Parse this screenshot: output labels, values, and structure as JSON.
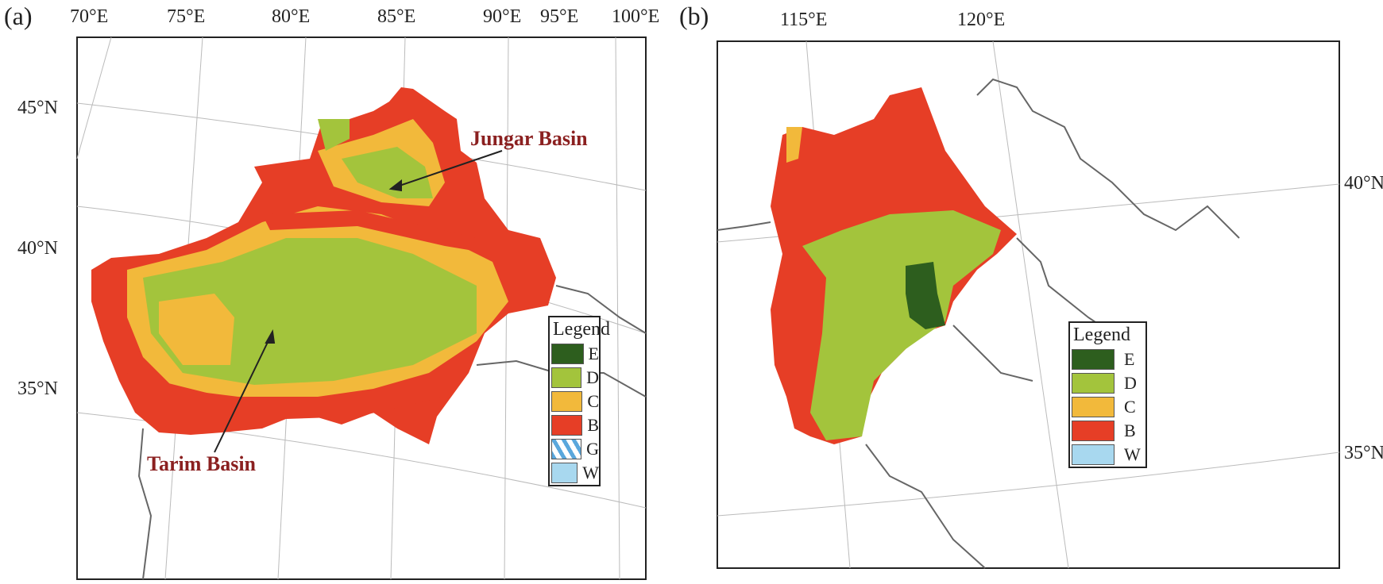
{
  "panels": [
    {
      "label": "(a)",
      "top_ticks": [
        "70°E",
        "75°E",
        "80°E",
        "85°E",
        "90°E",
        "95°E",
        "100°E"
      ],
      "left_ticks": [
        "45°N",
        "40°N",
        "35°N"
      ],
      "annotations": [
        "Jungar Basin",
        "Tarim Basin"
      ],
      "legend": {
        "title": "Legend",
        "items": [
          {
            "key": "E",
            "color": "#2d5e1e"
          },
          {
            "key": "D",
            "color": "#a3c43c"
          },
          {
            "key": "C",
            "color": "#f2b93b"
          },
          {
            "key": "B",
            "color": "#e63e26"
          },
          {
            "key": "G",
            "color": "#5aa7dc",
            "pattern": "glacier"
          },
          {
            "key": "W",
            "color": "#a8d8ef"
          }
        ]
      }
    },
    {
      "label": "(b)",
      "top_ticks": [
        "115°E",
        "120°E"
      ],
      "right_ticks": [
        "40°N",
        "35°N"
      ],
      "legend": {
        "title": "Legend",
        "items": [
          {
            "key": "E",
            "color": "#2d5e1e"
          },
          {
            "key": "D",
            "color": "#a3c43c"
          },
          {
            "key": "C",
            "color": "#f2b93b"
          },
          {
            "key": "B",
            "color": "#e63e26"
          },
          {
            "key": "W",
            "color": "#a8d8ef"
          }
        ]
      }
    }
  ]
}
